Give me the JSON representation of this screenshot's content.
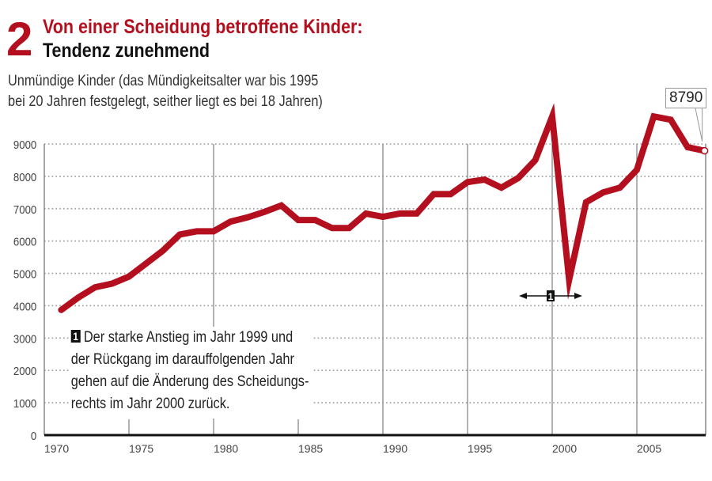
{
  "header": {
    "number": "2",
    "title": "Von einer Scheidung betroffene Kinder:",
    "subtitle": "Tendenz zunehmend",
    "description_line1": "Unmündige Kinder (das Mündigkeitsalter war bis 1995",
    "description_line2": "bei 20 Jahren festgelegt, seither liegt es bei 18 Jahren)"
  },
  "note": {
    "badge": "1",
    "lines": [
      "Der starke Anstieg im Jahr 1999 und",
      "der Rückgang im darauffolgenden Jahr",
      "gehen auf die Änderung des Scheidungs-",
      "rechts im Jahr 2000 zurück."
    ]
  },
  "colors": {
    "line": "#b40f1e",
    "grid": "#999999",
    "axis": "#111111"
  },
  "chart_data": {
    "type": "line",
    "title": "Von einer Scheidung betroffene Kinder: Tendenz zunehmend",
    "xlabel": "",
    "ylabel": "",
    "xlim": [
      1970,
      2008
    ],
    "ylim": [
      0,
      9000
    ],
    "yticks": [
      0,
      1000,
      2000,
      3000,
      4000,
      5000,
      6000,
      7000,
      8000,
      9000
    ],
    "ytick_labels": [
      "0",
      "1000",
      "2000",
      "3000",
      "4000",
      "5000",
      "6000",
      "7000",
      "8000",
      "9000"
    ],
    "xticks": [
      1970,
      1975,
      1980,
      1985,
      1990,
      1995,
      2000,
      2005
    ],
    "xtick_labels": [
      "1970",
      "1975",
      "1980",
      "1985",
      "1990",
      "1995",
      "2000",
      "2005"
    ],
    "grid": true,
    "series": [
      {
        "name": "Von einer Scheidung betroffene Kinder",
        "x": [
          1970,
          1971,
          1972,
          1973,
          1974,
          1975,
          1976,
          1977,
          1978,
          1979,
          1980,
          1981,
          1982,
          1983,
          1984,
          1985,
          1986,
          1987,
          1988,
          1989,
          1990,
          1991,
          1992,
          1993,
          1994,
          1995,
          1996,
          1997,
          1998,
          1999,
          2000,
          2001,
          2002,
          2003,
          2004,
          2005,
          2006,
          2007,
          2008
        ],
        "values": [
          3870,
          4250,
          4570,
          4680,
          4900,
          5300,
          5700,
          6200,
          6300,
          6300,
          6600,
          6730,
          6900,
          7100,
          6650,
          6650,
          6400,
          6400,
          6850,
          6750,
          6850,
          6850,
          7450,
          7450,
          7820,
          7900,
          7650,
          7950,
          8500,
          9850,
          4800,
          7200,
          7500,
          7650,
          8200,
          9850,
          9750,
          8900,
          8790
        ]
      }
    ],
    "annotations": [
      {
        "label": "8790",
        "x": 2008,
        "y": 8790
      },
      {
        "label": "1",
        "x_range": [
          1999,
          2000
        ]
      }
    ]
  }
}
